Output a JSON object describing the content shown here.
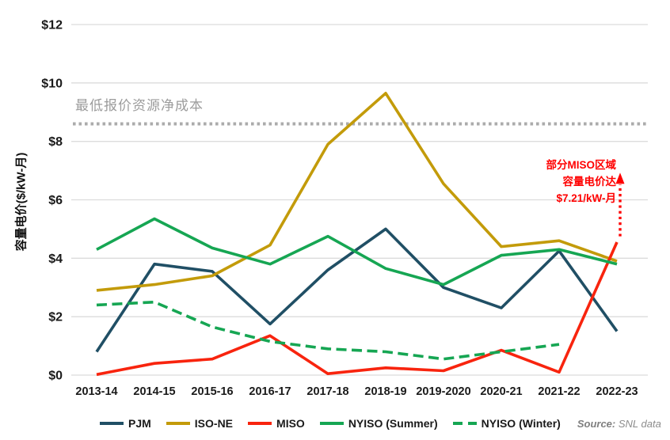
{
  "chart_data": {
    "type": "line",
    "title": "",
    "ylabel": "容量电价($/kW-月)",
    "xlabel": "",
    "ylim": [
      0,
      12
    ],
    "y_tick_step": 2,
    "y_tick_prefix": "$",
    "grid": true,
    "legend_position": "bottom",
    "categories": [
      "2013-14",
      "2014-15",
      "2015-16",
      "2016-17",
      "2017-18",
      "2018-19",
      "2019-2020",
      "2020-21",
      "2021-22",
      "2022-23"
    ],
    "series": [
      {
        "name": "PJM",
        "color": "#204f65",
        "style": "solid",
        "values": [
          0.8,
          3.8,
          3.55,
          1.75,
          3.6,
          5.0,
          3.0,
          2.3,
          4.25,
          1.5
        ]
      },
      {
        "name": "ISO-NE",
        "color": "#c39b0a",
        "style": "solid",
        "values": [
          2.9,
          3.1,
          3.4,
          4.45,
          7.9,
          9.65,
          6.55,
          4.4,
          4.6,
          3.9
        ]
      },
      {
        "name": "MISO",
        "color": "#f8240e",
        "style": "solid",
        "values": [
          0.02,
          0.4,
          0.55,
          1.35,
          0.05,
          0.25,
          0.15,
          0.85,
          0.1,
          4.55
        ]
      },
      {
        "name": "NYISO (Summer)",
        "color": "#16a653",
        "style": "solid",
        "values": [
          4.3,
          5.35,
          4.35,
          3.8,
          4.75,
          3.65,
          3.1,
          4.1,
          4.3,
          3.8
        ]
      },
      {
        "name": "NYISO (Winter)",
        "color": "#16a653",
        "style": "dashed",
        "values": [
          2.4,
          2.5,
          1.65,
          1.15,
          0.9,
          0.8,
          0.55,
          0.8,
          1.05,
          null
        ]
      }
    ],
    "threshold_line": {
      "value": 8.6,
      "label": "最低报价资源净成本",
      "color": "#ababab",
      "style": "dotted"
    },
    "annotation": {
      "lines": [
        "部分MISO区域",
        "容量电价达",
        "$7.21/kW-月"
      ],
      "color": "#ff0000",
      "arrow": {
        "at_category": "2022-23",
        "from_value": 4.75,
        "to_value": 6.55
      }
    }
  },
  "source": {
    "prefix": "Source:",
    "text": " SNL data"
  }
}
